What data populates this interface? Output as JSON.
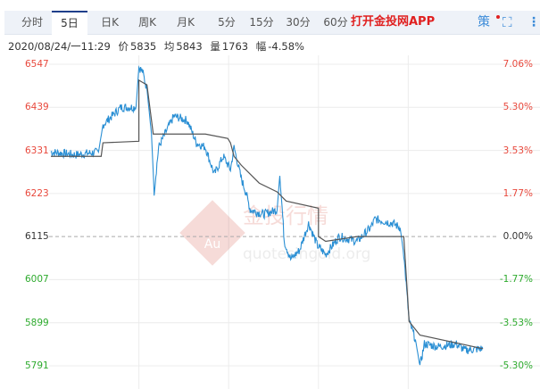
{
  "tabs": [
    "分时",
    "5日",
    "日K",
    "周K",
    "月K",
    "5分",
    "15分",
    "30分",
    "60分"
  ],
  "active_tab": 1,
  "app_link": "打开金投网APP",
  "icons": [
    "strategy-icon",
    "fullscreen-icon",
    "more-icon"
  ],
  "strategy_label": "策",
  "info": {
    "datetime": "2020/08/24/一11:29",
    "price_label": "价",
    "price": "5835",
    "avg_label": "均",
    "avg": "5843",
    "vol_label": "量",
    "vol": "1763",
    "chg_label": "幅",
    "chg": "-4.58%"
  },
  "watermark": {
    "cn": "金投行情",
    "en": "quotesingold.org",
    "logo": "Au"
  },
  "colors": {
    "price": "#2a8fd4",
    "avg": "#555555",
    "up": "#e8483c",
    "down": "#2daa2d",
    "base": "#333333"
  },
  "chart_data": {
    "type": "line",
    "x_unit": "trading day (0-5)",
    "xlim": [
      0,
      5
    ],
    "ylim": [
      5791,
      6547
    ],
    "base": 6115,
    "y_ticks_left": [
      "6547",
      "6439",
      "6331",
      "6223",
      "6115",
      "6007",
      "5899",
      "5791"
    ],
    "y_ticks_right": [
      "7.06%",
      "5.30%",
      "3.53%",
      "1.77%",
      "0.00%",
      "-1.77%",
      "-3.53%",
      "-5.30%"
    ],
    "series": [
      {
        "key": "price",
        "points": [
          [
            0.02,
            6327
          ],
          [
            0.3,
            6320
          ],
          [
            0.55,
            6327
          ],
          [
            0.6,
            6395
          ],
          [
            0.8,
            6439
          ],
          [
            0.95,
            6439
          ],
          [
            0.97,
            6444
          ],
          [
            1.0,
            6540
          ],
          [
            1.04,
            6529
          ],
          [
            1.09,
            6484
          ],
          [
            1.14,
            6372
          ],
          [
            1.17,
            6227
          ],
          [
            1.22,
            6339
          ],
          [
            1.29,
            6372
          ],
          [
            1.39,
            6417
          ],
          [
            1.54,
            6406
          ],
          [
            1.64,
            6350
          ],
          [
            1.74,
            6339
          ],
          [
            1.84,
            6271
          ],
          [
            1.94,
            6316
          ],
          [
            2.02,
            6283
          ],
          [
            2.06,
            6339
          ],
          [
            2.14,
            6260
          ],
          [
            2.19,
            6227
          ],
          [
            2.24,
            6182
          ],
          [
            2.39,
            6171
          ],
          [
            2.54,
            6182
          ],
          [
            2.57,
            6271
          ],
          [
            2.62,
            6103
          ],
          [
            2.69,
            6058
          ],
          [
            2.79,
            6081
          ],
          [
            2.89,
            6148
          ],
          [
            2.99,
            6092
          ],
          [
            3.08,
            6070
          ],
          [
            3.23,
            6115
          ],
          [
            3.43,
            6103
          ],
          [
            3.58,
            6137
          ],
          [
            3.63,
            6159
          ],
          [
            3.83,
            6148
          ],
          [
            3.91,
            6137
          ],
          [
            3.95,
            6070
          ],
          [
            4.01,
            5902
          ],
          [
            4.08,
            5857
          ],
          [
            4.13,
            5790
          ],
          [
            4.18,
            5846
          ],
          [
            4.33,
            5839
          ],
          [
            4.53,
            5846
          ],
          [
            4.63,
            5830
          ],
          [
            4.83,
            5834
          ]
        ]
      },
      {
        "key": "avg",
        "points": [
          [
            0.02,
            6316
          ],
          [
            0.58,
            6316
          ],
          [
            0.6,
            6350
          ],
          [
            1.0,
            6354
          ],
          [
            1.0,
            6507
          ],
          [
            1.09,
            6495
          ],
          [
            1.16,
            6372
          ],
          [
            1.44,
            6372
          ],
          [
            1.74,
            6372
          ],
          [
            1.99,
            6361
          ],
          [
            2.02,
            6350
          ],
          [
            2.06,
            6316
          ],
          [
            2.14,
            6294
          ],
          [
            2.34,
            6249
          ],
          [
            2.54,
            6227
          ],
          [
            2.64,
            6204
          ],
          [
            3.0,
            6186
          ],
          [
            3.0,
            6115
          ],
          [
            3.08,
            6103
          ],
          [
            3.43,
            6115
          ],
          [
            3.95,
            6115
          ],
          [
            4.01,
            5902
          ],
          [
            4.13,
            5868
          ],
          [
            4.83,
            5834
          ]
        ]
      }
    ]
  }
}
